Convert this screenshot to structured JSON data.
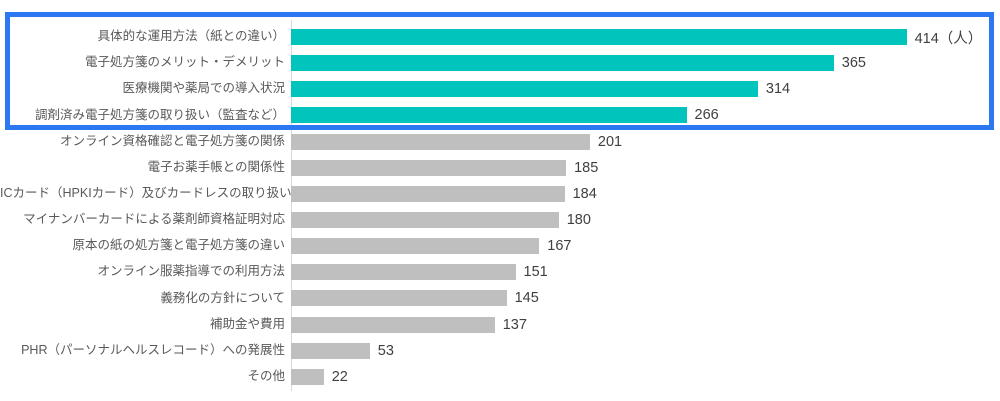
{
  "chart_data": {
    "type": "bar",
    "orientation": "horizontal",
    "title": "",
    "xlabel": "",
    "ylabel": "",
    "xlim": [
      0,
      470
    ],
    "grid": false,
    "legend_position": "none",
    "unit_note": "（人）",
    "categories": [
      "具体的な運用方法（紙との違い）",
      "電子処方箋のメリット・デメリット",
      "医療機関や薬局での導入状況",
      "調剤済み電子処方箋の取り扱い（監査など）",
      "オンライン資格確認と電子処方箋の関係",
      "電子お薬手帳との関係性",
      "ICカード（HPKIカード）及びカードレスの取り扱い",
      "マイナンバーカードによる薬剤師資格証明対応",
      "原本の紙の処方箋と電子処方箋の違い",
      "オンライン服薬指導での利用方法",
      "義務化の方針について",
      "補助金や費用",
      "PHR（パーソナルヘルスレコード）への発展性",
      "その他"
    ],
    "values": [
      414,
      365,
      314,
      266,
      201,
      185,
      184,
      180,
      167,
      151,
      145,
      137,
      53,
      22
    ],
    "value_labels": [
      "414（人）",
      "365",
      "314",
      "266",
      "201",
      "185",
      "184",
      "180",
      "167",
      "151",
      "145",
      "137",
      "53",
      "22"
    ],
    "highlighted_rows": 4,
    "colors": {
      "highlight_bar": "#01C4BC",
      "default_bar": "#BFBFBF",
      "highlight_box_border": "#2C78F2",
      "label_text": "#595959",
      "value_text": "#404040",
      "axis_line": "#D9D9D9",
      "background": "#FFFFFF"
    }
  }
}
